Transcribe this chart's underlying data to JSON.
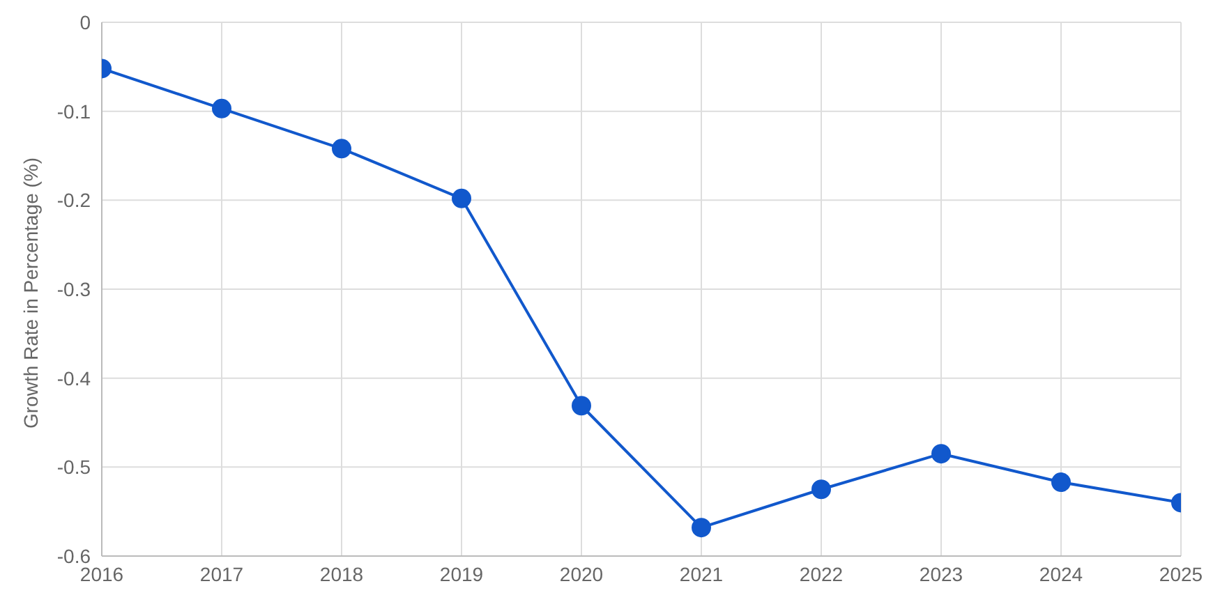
{
  "chart_data": {
    "type": "line",
    "ylabel": "Growth Rate in Percentage (%)",
    "x": [
      2016,
      2017,
      2018,
      2019,
      2020,
      2021,
      2022,
      2023,
      2024,
      2025
    ],
    "series": [
      {
        "color": "#1158cc",
        "values": [
          -0.052,
          -0.097,
          -0.142,
          -0.198,
          -0.431,
          -0.568,
          -0.525,
          -0.485,
          -0.517,
          -0.54
        ]
      }
    ],
    "xlim": [
      2016,
      2025
    ],
    "xticks": [
      2016,
      2017,
      2018,
      2019,
      2020,
      2021,
      2022,
      2023,
      2024,
      2025
    ],
    "ylim": [
      -0.6,
      0
    ],
    "yticks": [
      0,
      -0.1,
      -0.2,
      -0.3,
      -0.4,
      -0.5,
      -0.6
    ],
    "grid": true,
    "marker": "circle",
    "line_style": "solid"
  }
}
